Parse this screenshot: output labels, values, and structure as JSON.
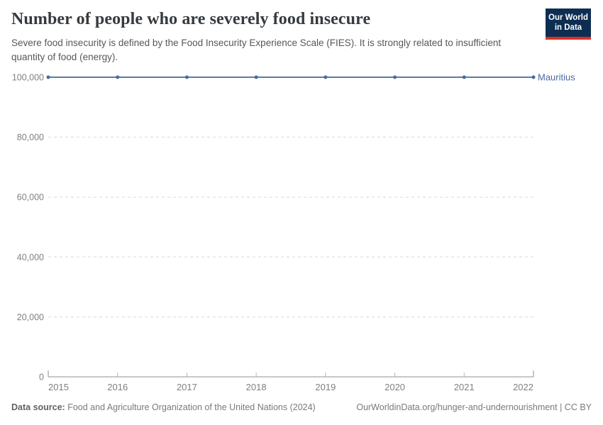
{
  "chart_data": {
    "type": "line",
    "title": "Number of people who are severely food insecure",
    "subtitle": "Severe food insecurity is defined by the Food Insecurity Experience Scale (FIES). It is strongly related to insufficient quantity of food (energy).",
    "x": [
      2015,
      2016,
      2017,
      2018,
      2019,
      2020,
      2021,
      2022
    ],
    "series": [
      {
        "name": "Mauritius",
        "values": [
          100000,
          100000,
          100000,
          100000,
          100000,
          100000,
          100000,
          100000
        ],
        "color": "#5b7ca8",
        "point_color": "#48699b",
        "label_color": "#4a6a9f"
      }
    ],
    "xlabel": "",
    "ylabel": "",
    "ylim": [
      0,
      100000
    ],
    "yticks": [
      0,
      20000,
      40000,
      60000,
      80000,
      100000
    ],
    "ytick_labels": [
      "0",
      "20,000",
      "40,000",
      "60,000",
      "80,000",
      "100,000"
    ],
    "xtick_labels": [
      "2015",
      "2016",
      "2017",
      "2018",
      "2019",
      "2020",
      "2021",
      "2022"
    ],
    "grid": "horizontal-dashed",
    "gridline_color": "#d9d9d9",
    "axis_color": "#8d9093",
    "legend_position": "end-of-line"
  },
  "logo": {
    "line1": "Our World",
    "line2": "in Data",
    "bg_color": "#0d2e52",
    "accent_color": "#e0301f"
  },
  "footer": {
    "datasource_label": "Data source:",
    "datasource_text": " Food and Agriculture Organization of the United Nations (2024)",
    "attribution": "OurWorldinData.org/hunger-and-undernourishment | CC BY"
  }
}
